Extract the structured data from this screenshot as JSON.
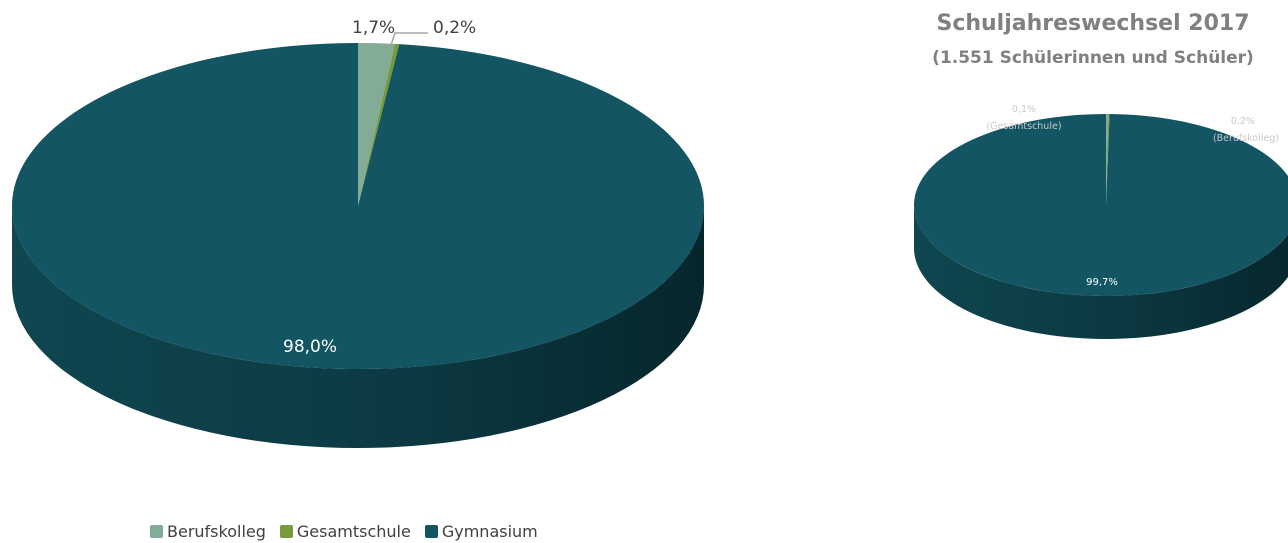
{
  "chart_data": [
    {
      "type": "pie",
      "categories": [
        "Berufskolleg",
        "Gesamtschule",
        "Gymnasium"
      ],
      "values": [
        1.7,
        0.2,
        98.0
      ],
      "labels": [
        "1,7%",
        "0,2%",
        "98,0%"
      ],
      "colors": [
        "#82ac96",
        "#789b3a",
        "#135563"
      ],
      "title": ""
    },
    {
      "type": "pie",
      "title": "Schuljahreswechsel 2017",
      "subtitle": "(1.551 Schülerinnen und Schüler)",
      "categories": [
        "Berufskolleg",
        "Gesamtschule",
        "Gymnasium"
      ],
      "values": [
        0.2,
        0.1,
        99.7
      ],
      "labels": [
        "0,2%",
        "0,1%",
        "99,7%"
      ],
      "sublabels": [
        "(Berufskolleg)",
        "(Gesamtschule)",
        ""
      ],
      "colors": [
        "#82ac96",
        "#789b3a",
        "#135563"
      ]
    }
  ],
  "legend": {
    "placement": "bottom-left",
    "items": [
      {
        "label": "Berufskolleg",
        "color": "#82ac96"
      },
      {
        "label": "Gesamtschule",
        "color": "#789b3a"
      },
      {
        "label": "Gymnasium",
        "color": "#135563"
      }
    ]
  }
}
